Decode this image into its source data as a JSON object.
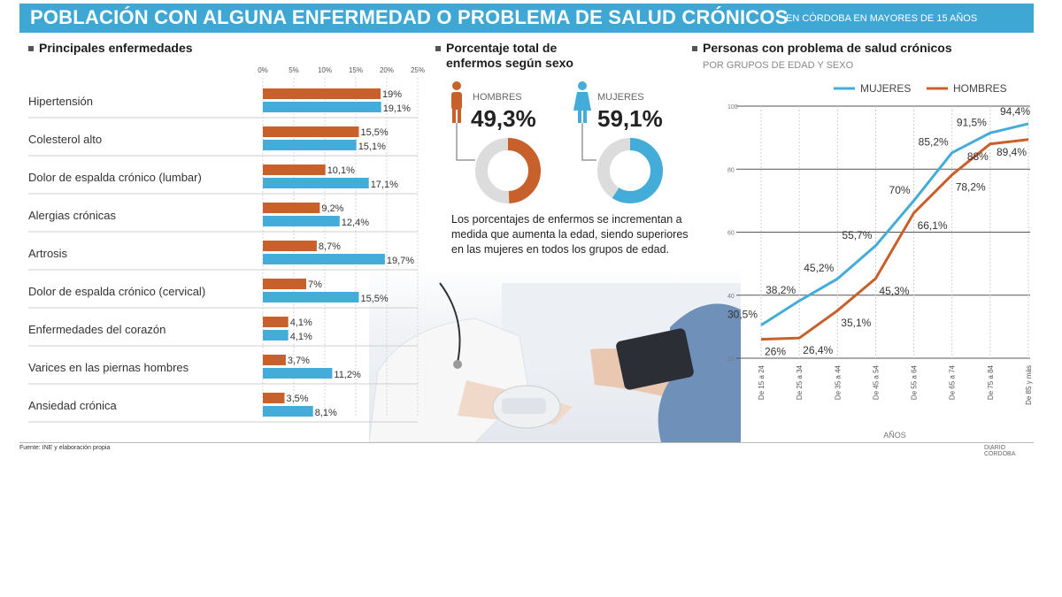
{
  "header": {
    "title": "POBLACIÓN CON ALGUNA ENFERMEDAD O PROBLEMA DE SALUD CRÓNICOS",
    "subtitle": "EN CÓRDOBA EN MAYORES DE 15 AÑOS"
  },
  "colors": {
    "hombres": "#c8602b",
    "mujeres": "#44acd8",
    "title_bar": "#3ea7d3"
  },
  "pie_section": {
    "title_line1": "Porcentaje total de",
    "title_line2": "enfermos según sexo",
    "hombres_label": "HOMBRES",
    "hombres_value": "49,3%",
    "mujeres_label": "MUJERES",
    "mujeres_value": "59,1%",
    "note": "Los porcentajes de enfermos se incrementan a medida que aumenta la edad, siendo superiores en las mujeres en todos los grupos de edad."
  },
  "footer": {
    "source": "Fuente: INE y elaboración propia",
    "credit": "DIARIO CÓRDOBA"
  },
  "chart_data": [
    {
      "type": "bar",
      "title": "Principales enfermedades",
      "categories": [
        "Hipertensión",
        "Colesterol alto",
        "Dolor de espalda crónico (lumbar)",
        "Alergias crónicas",
        "Artrosis",
        "Dolor de espalda crónico (cervical)",
        "Enfermedades del corazón",
        "Varices en las piernas hombres",
        "Ansiedad crónica"
      ],
      "series": [
        {
          "values": [
            19,
            15.5,
            10.1,
            9.2,
            8.7,
            7,
            4.1,
            3.7,
            3.5
          ],
          "labels": [
            "19%",
            "15,5%",
            "10,1%",
            "9,2%",
            "8,7%",
            "7%",
            "4,1%",
            "3,7%",
            "3,5%"
          ]
        },
        {
          "values": [
            19.1,
            15.1,
            17.1,
            12.4,
            19.7,
            15.5,
            4.1,
            11.2,
            8.1
          ],
          "labels": [
            "19,1%",
            "15,1%",
            "17,1%",
            "12,4%",
            "19,7%",
            "15,5%",
            "4,1%",
            "11,2%",
            "8,1%"
          ]
        }
      ],
      "axis_ticks": [
        "0%",
        "5%",
        "10%",
        "15%",
        "20%",
        "25%"
      ],
      "xlim": [
        0,
        25
      ],
      "grid": true
    },
    {
      "type": "pie",
      "title": "Porcentaje total de enfermos según sexo",
      "series": [
        {
          "name": "HOMBRES",
          "value": 49.3
        },
        {
          "name": "MUJERES",
          "value": 59.1
        }
      ]
    },
    {
      "type": "line",
      "title": "Personas con problema de salud crónicos",
      "subtitle": "POR GRUPOS DE EDAD Y SEXO",
      "xlabel": "AÑOS",
      "categories": [
        "De 15 a 24",
        "De 25 a 34",
        "De 35 a 44",
        "De 45 a 54",
        "De 55 a 64",
        "De 65 a 74",
        "De 75 a 84",
        "De 85 y más"
      ],
      "series": [
        {
          "name": "MUJERES",
          "values": [
            30.5,
            38.2,
            45.2,
            55.7,
            70,
            85.2,
            91.5,
            94.4
          ],
          "labels": [
            "30,5%",
            "38,2%",
            "45,2%",
            "55,7%",
            "70%",
            "85,2%",
            "91,5%",
            "94,4%"
          ]
        },
        {
          "name": "HOMBRES",
          "values": [
            26,
            26.4,
            35.1,
            45.3,
            66.1,
            78.2,
            88,
            89.4
          ],
          "labels": [
            "26%",
            "26,4%",
            "35,1%",
            "45,3%",
            "66,1%",
            "78,2%",
            "88%",
            "89,4%"
          ]
        }
      ],
      "y_ticks": [
        "100",
        "80",
        "60",
        "40",
        "20"
      ],
      "ylim": [
        20,
        100
      ],
      "legend": "top-right",
      "grid": true
    }
  ]
}
